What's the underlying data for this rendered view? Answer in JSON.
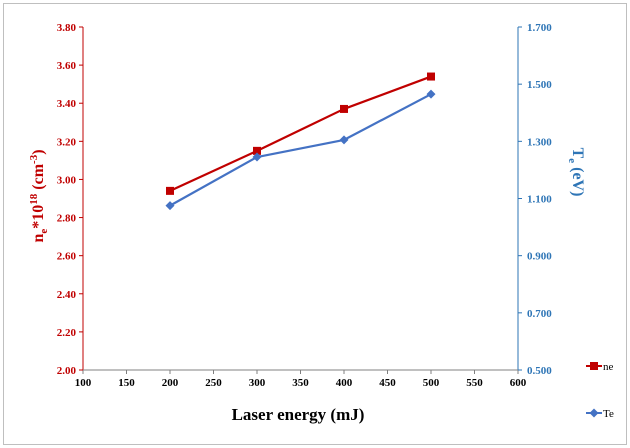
{
  "chart_data": {
    "type": "line",
    "xlabel": "Laser energy (mJ)",
    "ylabel_left": {
      "base": "n",
      "sub": "e",
      "mid": "*10",
      "sup": "18",
      "unit_open": " (cm",
      "unit_sup": "-3",
      "unit_close": ")"
    },
    "ylabel_right": {
      "base": "T",
      "sub": "e",
      "unit": " (eV)"
    },
    "x_ticks": [
      "100",
      "150",
      "200",
      "250",
      "300",
      "350",
      "400",
      "450",
      "500",
      "550",
      "600"
    ],
    "y_left_ticks": [
      "2.00",
      "2.20",
      "2.40",
      "2.60",
      "2.80",
      "3.00",
      "3.20",
      "3.40",
      "3.60",
      "3.80"
    ],
    "y_right_ticks": [
      "0.500",
      "0.700",
      "0.900",
      "1.100",
      "1.300",
      "1.500",
      "1.700"
    ],
    "xlim": [
      100,
      600
    ],
    "ylim_left": [
      2.0,
      3.8
    ],
    "ylim_right": [
      0.5,
      1.7
    ],
    "x": [
      200,
      300,
      400,
      500
    ],
    "series": [
      {
        "name": "ne",
        "axis": "left",
        "marker": "square",
        "color": "#c00000",
        "values": [
          2.94,
          3.15,
          3.37,
          3.54
        ]
      },
      {
        "name": "Te",
        "axis": "right",
        "marker": "diamond",
        "color": "#4472c4",
        "values": [
          1.075,
          1.245,
          1.305,
          1.465
        ]
      }
    ],
    "legend_position": "right",
    "grid": false,
    "colors": {
      "left_axis": "#c00000",
      "right_axis": "#2e75b6"
    }
  }
}
